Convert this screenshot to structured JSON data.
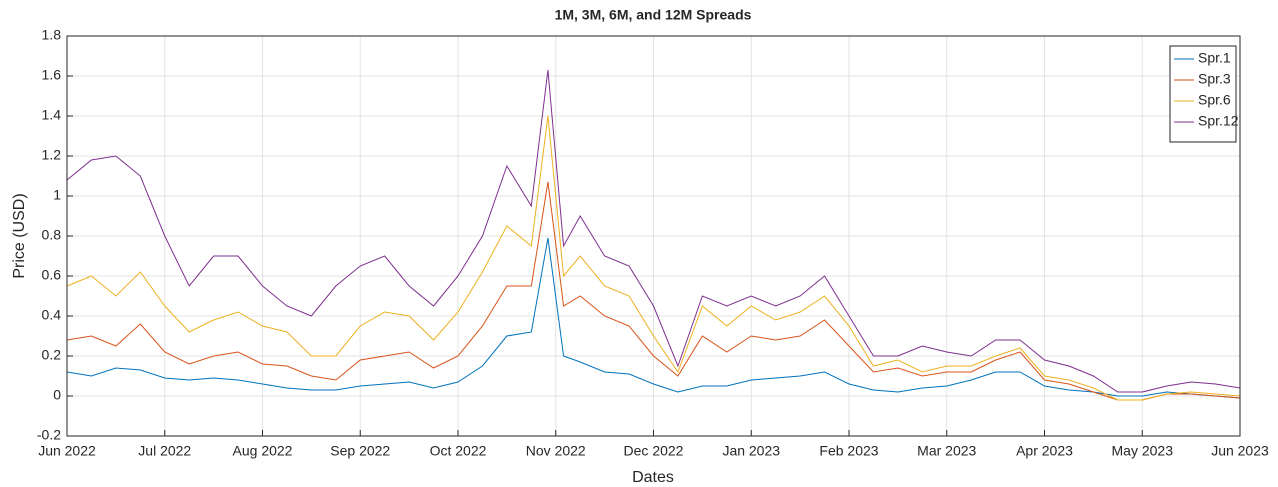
{
  "chart_data": {
    "type": "line",
    "title": "1M, 3M, 6M, and 12M Spreads",
    "x_label": "Dates",
    "y_label": "Price (USD)",
    "x": [
      0,
      0.25,
      0.5,
      0.75,
      1,
      1.25,
      1.5,
      1.75,
      2,
      2.25,
      2.5,
      2.75,
      3,
      3.25,
      3.5,
      3.75,
      4,
      4.25,
      4.5,
      4.75,
      4.92,
      5.08,
      5.25,
      5.5,
      5.75,
      6,
      6.25,
      6.5,
      6.75,
      7,
      7.25,
      7.5,
      7.75,
      8,
      8.25,
      8.5,
      8.75,
      9,
      9.25,
      9.5,
      9.75,
      10,
      10.25,
      10.5,
      10.75,
      11,
      11.25,
      11.5,
      11.75,
      12
    ],
    "series": [
      {
        "name": "Spr.1",
        "color": "#0072bd",
        "values": [
          0.12,
          0.1,
          0.14,
          0.13,
          0.09,
          0.08,
          0.09,
          0.08,
          0.06,
          0.04,
          0.03,
          0.03,
          0.05,
          0.06,
          0.07,
          0.04,
          0.07,
          0.15,
          0.3,
          0.32,
          0.79,
          0.2,
          0.17,
          0.12,
          0.11,
          0.06,
          0.02,
          0.05,
          0.05,
          0.08,
          0.09,
          0.1,
          0.12,
          0.06,
          0.03,
          0.02,
          0.04,
          0.05,
          0.08,
          0.12,
          0.12,
          0.05,
          0.03,
          0.02,
          0,
          0,
          0.02,
          0.01,
          0,
          -0.01
        ]
      },
      {
        "name": "Spr.3",
        "color": "#d95319",
        "values": [
          0.28,
          0.3,
          0.25,
          0.36,
          0.22,
          0.16,
          0.2,
          0.22,
          0.16,
          0.15,
          0.1,
          0.08,
          0.18,
          0.2,
          0.22,
          0.14,
          0.2,
          0.35,
          0.55,
          0.55,
          1.07,
          0.45,
          0.5,
          0.4,
          0.35,
          0.2,
          0.1,
          0.3,
          0.22,
          0.3,
          0.28,
          0.3,
          0.38,
          0.25,
          0.12,
          0.14,
          0.1,
          0.12,
          0.12,
          0.18,
          0.22,
          0.08,
          0.06,
          0.02,
          -0.02,
          -0.02,
          0.01,
          0.01,
          0,
          -0.01
        ]
      },
      {
        "name": "Spr.6",
        "color": "#edb120",
        "values": [
          0.55,
          0.6,
          0.5,
          0.62,
          0.45,
          0.32,
          0.38,
          0.42,
          0.35,
          0.32,
          0.2,
          0.2,
          0.35,
          0.42,
          0.4,
          0.28,
          0.42,
          0.62,
          0.85,
          0.75,
          1.4,
          0.6,
          0.7,
          0.55,
          0.5,
          0.3,
          0.12,
          0.45,
          0.35,
          0.45,
          0.38,
          0.42,
          0.5,
          0.35,
          0.15,
          0.18,
          0.12,
          0.15,
          0.15,
          0.2,
          0.24,
          0.1,
          0.08,
          0.04,
          -0.02,
          -0.02,
          0.01,
          0.02,
          0.01,
          0
        ]
      },
      {
        "name": "Spr.12",
        "color": "#7e2f8e",
        "values": [
          1.08,
          1.18,
          1.2,
          1.1,
          0.8,
          0.55,
          0.7,
          0.7,
          0.55,
          0.45,
          0.4,
          0.55,
          0.65,
          0.7,
          0.55,
          0.45,
          0.6,
          0.8,
          1.15,
          0.95,
          1.63,
          0.75,
          0.9,
          0.7,
          0.65,
          0.45,
          0.15,
          0.5,
          0.45,
          0.5,
          0.45,
          0.5,
          0.6,
          0.4,
          0.2,
          0.2,
          0.25,
          0.22,
          0.2,
          0.28,
          0.28,
          0.18,
          0.15,
          0.1,
          0.02,
          0.02,
          0.05,
          0.07,
          0.06,
          0.04
        ]
      }
    ],
    "xlim": [
      0,
      12
    ],
    "xticks": [
      {
        "value": 0,
        "label": "Jun 2022"
      },
      {
        "value": 1,
        "label": "Jul 2022"
      },
      {
        "value": 2,
        "label": "Aug 2022"
      },
      {
        "value": 3,
        "label": "Sep 2022"
      },
      {
        "value": 4,
        "label": "Oct 2022"
      },
      {
        "value": 5,
        "label": "Nov 2022"
      },
      {
        "value": 6,
        "label": "Dec 2022"
      },
      {
        "value": 7,
        "label": "Jan 2023"
      },
      {
        "value": 8,
        "label": "Feb 2023"
      },
      {
        "value": 9,
        "label": "Mar 2023"
      },
      {
        "value": 10,
        "label": "Apr 2023"
      },
      {
        "value": 11,
        "label": "May 2023"
      },
      {
        "value": 12,
        "label": "Jun 2023"
      }
    ],
    "ylim": [
      -0.2,
      1.8
    ],
    "yticks": [
      -0.2,
      0,
      0.2,
      0.4,
      0.6,
      0.8,
      1,
      1.2,
      1.4,
      1.6,
      1.8
    ],
    "grid": true,
    "legend": "upper-right"
  }
}
